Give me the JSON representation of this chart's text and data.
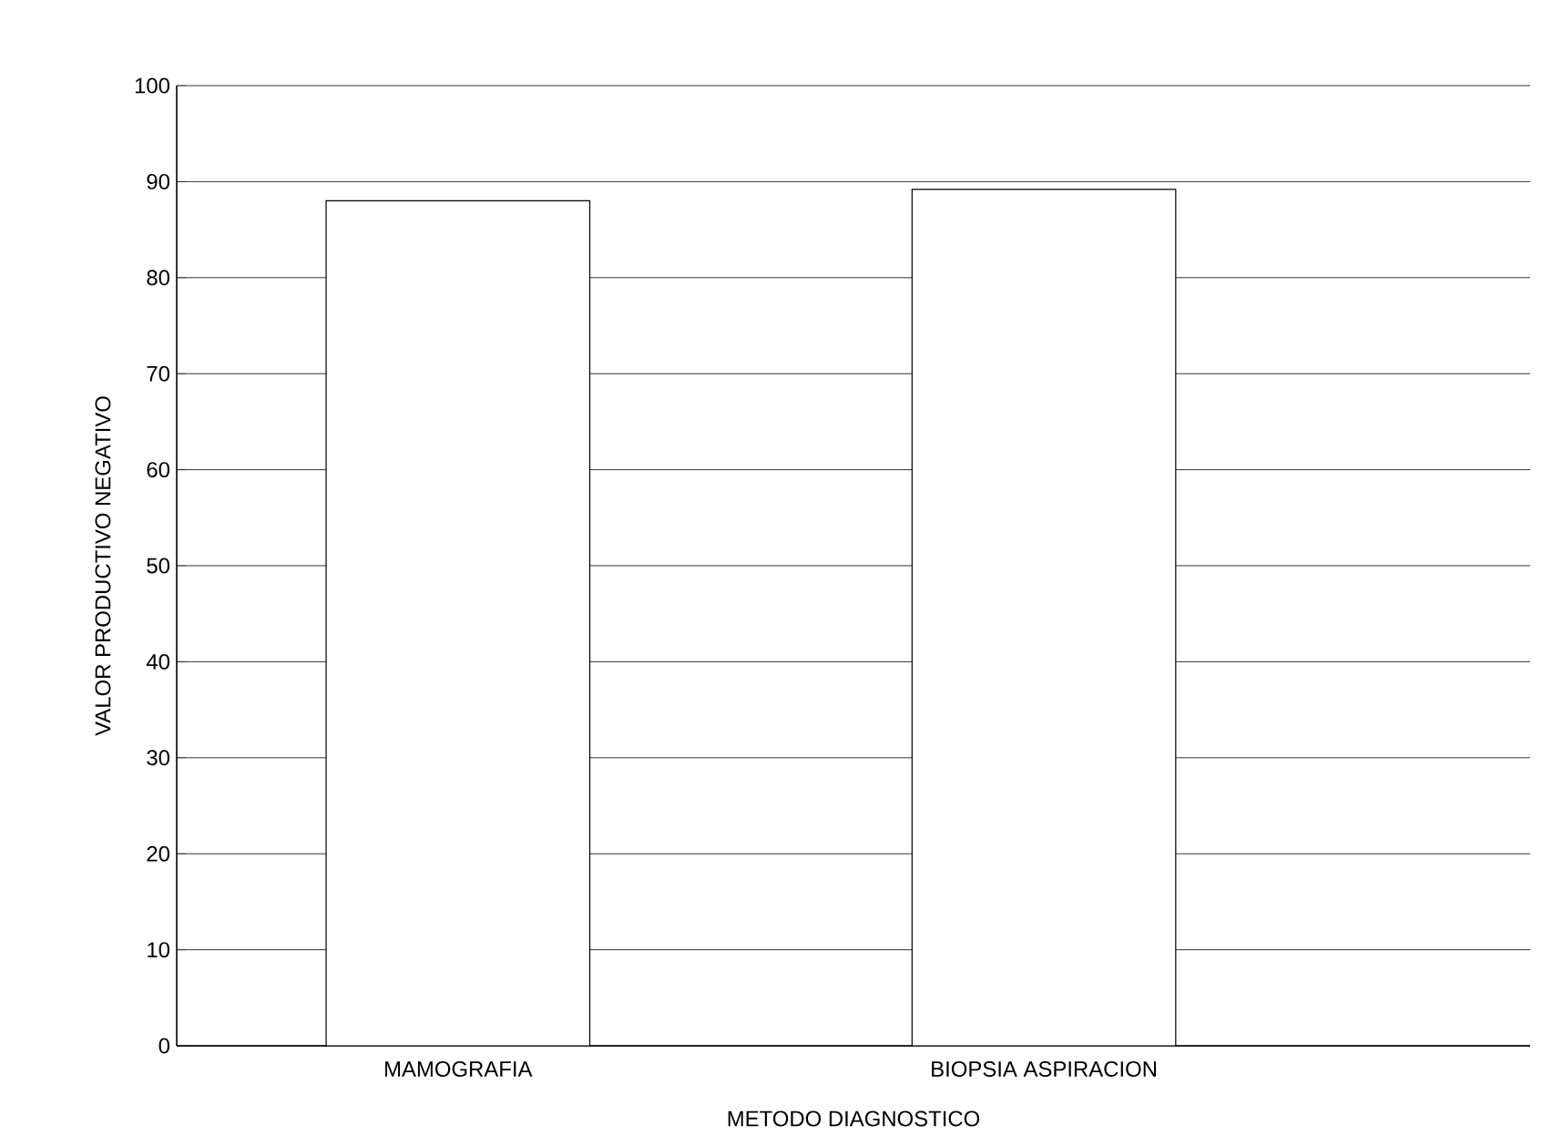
{
  "chart_data": {
    "type": "bar",
    "xlabel": "METODO  DIAGNOSTICO",
    "ylabel": "VALOR PRODUCTIVO  NEGATIVO",
    "categories": [
      "MAMOGRAFIA",
      "BIOPSIA ASPIRACION"
    ],
    "values": [
      88,
      89.2
    ],
    "color": "#ffffff",
    "ylim": [
      0,
      100
    ],
    "yticks": [
      0,
      10,
      20,
      30,
      40,
      50,
      60,
      70,
      80,
      90,
      100
    ],
    "grid": "y"
  }
}
